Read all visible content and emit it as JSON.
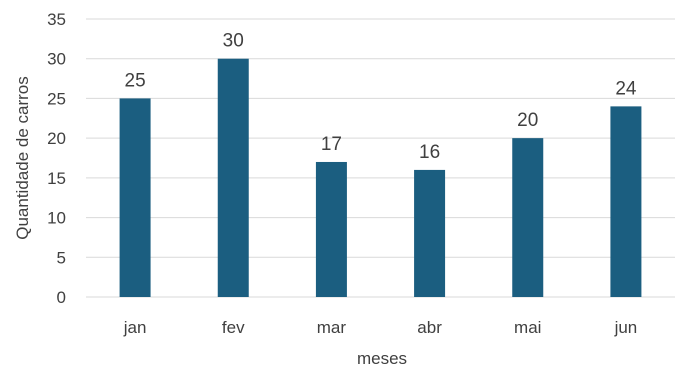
{
  "chart_data": {
    "type": "bar",
    "title": "",
    "xlabel": "meses",
    "ylabel": "Quantidade de carros",
    "categories": [
      "jan",
      "fev",
      "mar",
      "abr",
      "mai",
      "jun"
    ],
    "values": [
      25,
      30,
      17,
      16,
      20,
      24
    ],
    "data_labels": [
      "25",
      "30",
      "17",
      "16",
      "20",
      "24"
    ],
    "ylim": [
      0,
      35
    ],
    "yticks": [
      0,
      5,
      10,
      15,
      20,
      25,
      30,
      35
    ],
    "grid": true,
    "legend": false,
    "colors": {
      "bar": "#1b5e80"
    }
  }
}
